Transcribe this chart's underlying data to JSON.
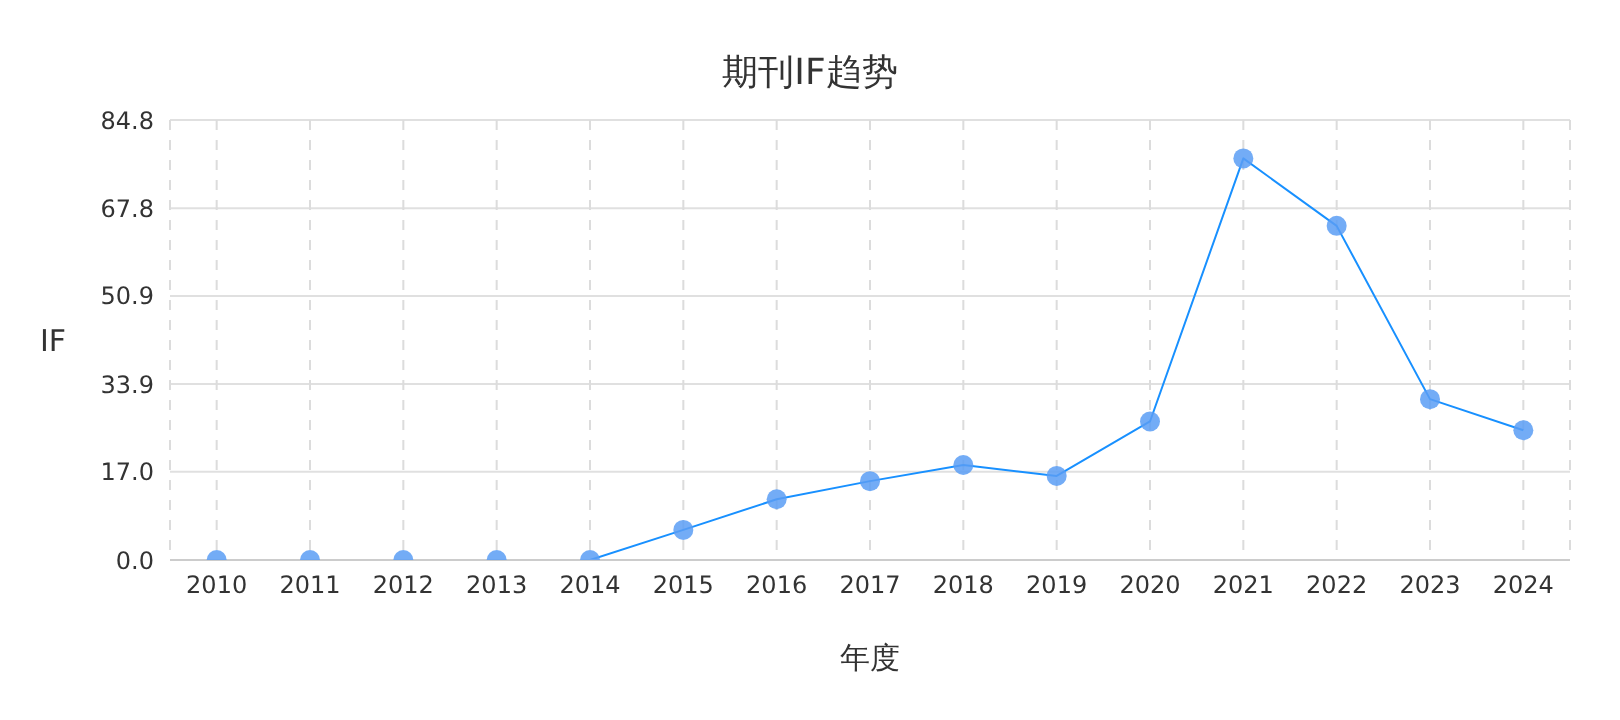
{
  "chart_data": {
    "type": "line",
    "title": "期刊IF趋势",
    "xlabel": "年度",
    "ylabel": "IF",
    "categories": [
      "2010",
      "2011",
      "2012",
      "2013",
      "2014",
      "2015",
      "2016",
      "2017",
      "2018",
      "2019",
      "2020",
      "2021",
      "2022",
      "2023",
      "2024"
    ],
    "series": [
      {
        "color": "#1890ff",
        "values": [
          0,
          0,
          0,
          0,
          0,
          5.8,
          11.7,
          15.2,
          18.3,
          16.2,
          26.7,
          77.4,
          64.4,
          31.0,
          25.0
        ]
      }
    ],
    "ylim": [
      0,
      84.8
    ],
    "yticks": [
      {
        "value": 0,
        "label": "0.0"
      },
      {
        "value": 17,
        "label": "17.0"
      },
      33.9,
      50.9,
      67.8,
      84.8
    ],
    "grid": true,
    "marker": "circle",
    "line_style": "solid"
  }
}
